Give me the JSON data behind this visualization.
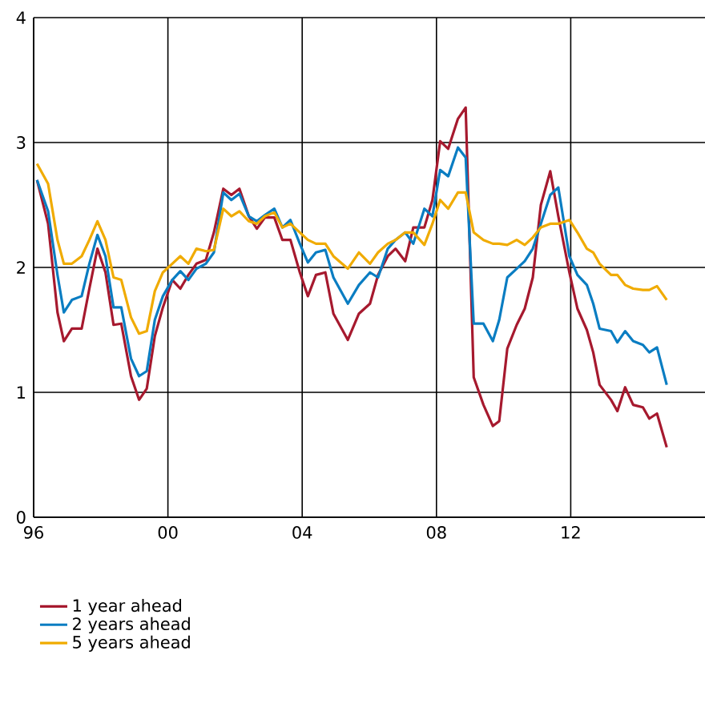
{
  "chart_data": {
    "type": "line",
    "x": [
      1996.1,
      1996.43,
      1996.71,
      1996.9,
      1997.14,
      1997.43,
      1997.66,
      1997.9,
      1998.14,
      1998.38,
      1998.61,
      1998.9,
      1999.14,
      1999.37,
      1999.61,
      1999.85,
      2000.13,
      2000.37,
      2000.61,
      2000.85,
      2001.13,
      2001.37,
      2001.65,
      2001.89,
      2002.13,
      2002.41,
      2002.65,
      2002.89,
      2003.17,
      2003.41,
      2003.65,
      2003.93,
      2004.17,
      2004.41,
      2004.69,
      2004.93,
      2005.36,
      2005.69,
      2006.02,
      2006.26,
      2006.55,
      2006.78,
      2007.07,
      2007.31,
      2007.64,
      2007.88,
      2008.11,
      2008.35,
      2008.64,
      2008.87,
      2009.11,
      2009.4,
      2009.68,
      2009.87,
      2010.11,
      2010.39,
      2010.63,
      2010.87,
      2011.11,
      2011.39,
      2011.63,
      2011.96,
      2012.2,
      2012.48,
      2012.67,
      2012.86,
      2013.2,
      2013.39,
      2013.62,
      2013.86,
      2014.15,
      2014.34,
      2014.57,
      2014.86
    ],
    "series": [
      {
        "name": "1 year ahead",
        "color": "#a6192e",
        "values": [
          2.7,
          2.35,
          1.64,
          1.41,
          1.51,
          1.51,
          1.83,
          2.15,
          1.96,
          1.54,
          1.55,
          1.13,
          0.94,
          1.03,
          1.45,
          1.68,
          1.9,
          1.83,
          1.94,
          2.03,
          2.06,
          2.28,
          2.63,
          2.58,
          2.63,
          2.41,
          2.31,
          2.4,
          2.4,
          2.22,
          2.22,
          1.96,
          1.77,
          1.94,
          1.96,
          1.63,
          1.42,
          1.63,
          1.71,
          1.94,
          2.09,
          2.15,
          2.05,
          2.32,
          2.32,
          2.54,
          3.01,
          2.95,
          3.19,
          3.28,
          1.12,
          0.9,
          0.73,
          0.77,
          1.35,
          1.54,
          1.67,
          1.92,
          2.5,
          2.77,
          2.41,
          1.96,
          1.67,
          1.5,
          1.32,
          1.06,
          0.94,
          0.85,
          1.04,
          0.9,
          0.88,
          0.79,
          0.83,
          0.56
        ]
      },
      {
        "name": "2 years ahead",
        "color": "#0a7dc2",
        "values": [
          2.7,
          2.45,
          1.94,
          1.64,
          1.74,
          1.77,
          2.03,
          2.26,
          2.09,
          1.68,
          1.68,
          1.27,
          1.13,
          1.17,
          1.58,
          1.77,
          1.9,
          1.97,
          1.9,
          1.99,
          2.03,
          2.12,
          2.6,
          2.54,
          2.59,
          2.41,
          2.37,
          2.42,
          2.47,
          2.32,
          2.38,
          2.19,
          2.04,
          2.12,
          2.14,
          1.92,
          1.71,
          1.86,
          1.96,
          1.92,
          2.15,
          2.22,
          2.28,
          2.19,
          2.47,
          2.41,
          2.78,
          2.73,
          2.96,
          2.88,
          1.55,
          1.55,
          1.41,
          1.58,
          1.92,
          1.99,
          2.05,
          2.15,
          2.35,
          2.58,
          2.64,
          2.09,
          1.94,
          1.86,
          1.71,
          1.51,
          1.49,
          1.4,
          1.49,
          1.41,
          1.38,
          1.32,
          1.36,
          1.06
        ]
      },
      {
        "name": "5 years ahead",
        "color": "#f0ab00",
        "values": [
          2.83,
          2.67,
          2.22,
          2.03,
          2.03,
          2.09,
          2.22,
          2.37,
          2.22,
          1.92,
          1.9,
          1.6,
          1.47,
          1.49,
          1.81,
          1.96,
          2.03,
          2.09,
          2.03,
          2.15,
          2.13,
          2.14,
          2.47,
          2.41,
          2.45,
          2.37,
          2.35,
          2.41,
          2.44,
          2.32,
          2.35,
          2.28,
          2.22,
          2.19,
          2.19,
          2.09,
          1.99,
          2.12,
          2.03,
          2.12,
          2.19,
          2.22,
          2.28,
          2.28,
          2.18,
          2.35,
          2.54,
          2.47,
          2.6,
          2.6,
          2.28,
          2.22,
          2.19,
          2.19,
          2.18,
          2.22,
          2.18,
          2.24,
          2.32,
          2.35,
          2.35,
          2.38,
          2.28,
          2.15,
          2.12,
          2.03,
          1.94,
          1.94,
          1.86,
          1.83,
          1.82,
          1.82,
          1.85,
          1.74
        ]
      }
    ],
    "xlim": [
      1996,
      2016
    ],
    "xticks": [
      {
        "value": 1996,
        "label": "96"
      },
      {
        "value": 2000,
        "label": "00"
      },
      {
        "value": 2004,
        "label": "04"
      },
      {
        "value": 2008,
        "label": "08"
      },
      {
        "value": 2012,
        "label": "12"
      }
    ],
    "ylim": [
      0,
      4
    ],
    "yticks": [
      0,
      1,
      2,
      3,
      4
    ],
    "grid": true,
    "legend": "bottom",
    "marker": "none",
    "line_style": "solid"
  }
}
